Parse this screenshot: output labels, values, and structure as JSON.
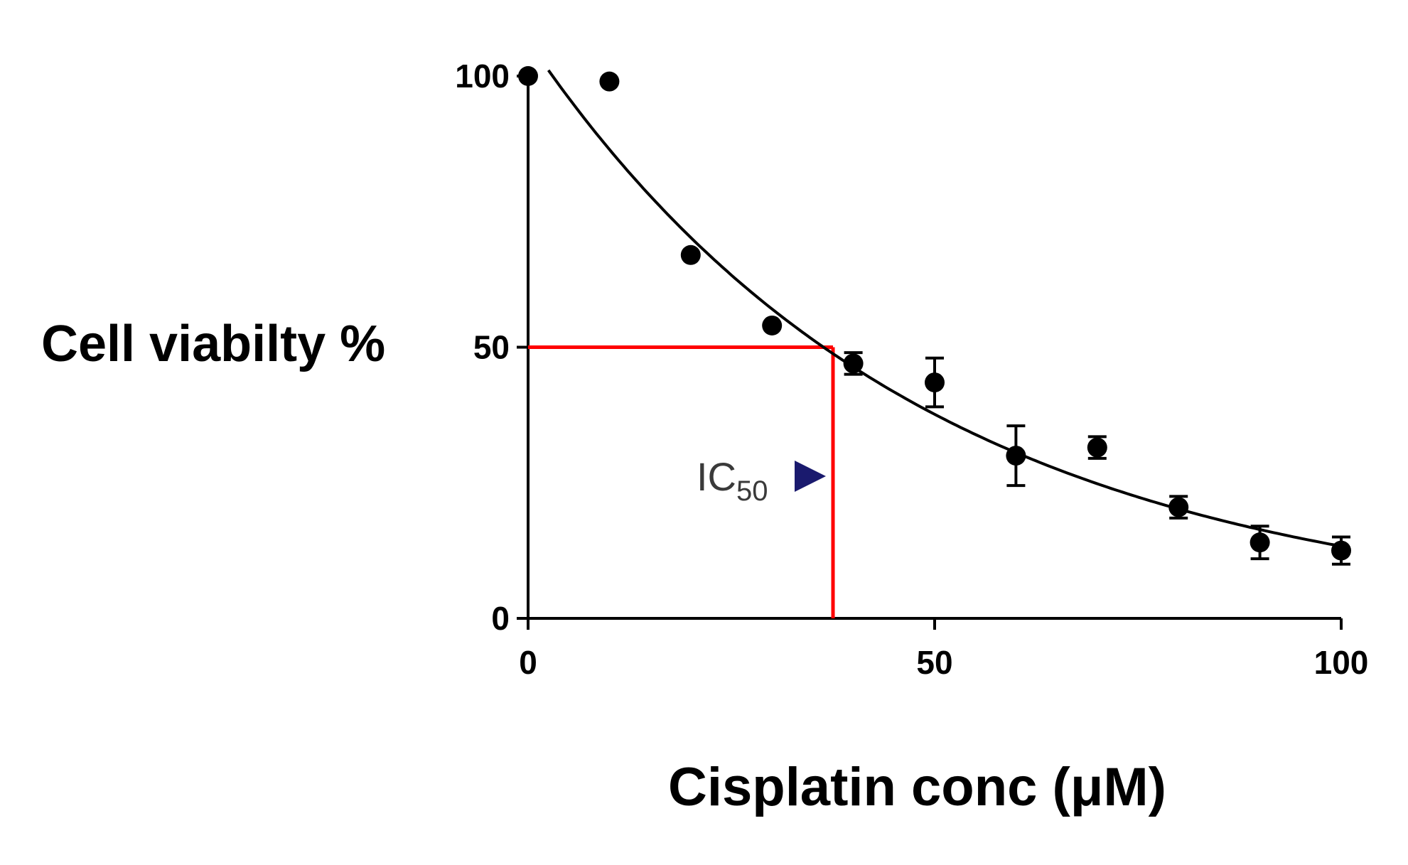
{
  "chart_data": {
    "type": "scatter",
    "xlabel": "Cisplatin conc (μM)",
    "ylabel": "Cell viabilty %",
    "xlim": [
      0,
      100
    ],
    "ylim": [
      0,
      100
    ],
    "xticks": [
      "0",
      "50",
      "100"
    ],
    "yticks": [
      "0",
      "50",
      "100"
    ],
    "grid": false,
    "points": [
      {
        "x": 0,
        "y": 100,
        "err": 0
      },
      {
        "x": 10,
        "y": 99,
        "err": 0
      },
      {
        "x": 20,
        "y": 67,
        "err": 0
      },
      {
        "x": 30,
        "y": 54,
        "err": 0
      },
      {
        "x": 40,
        "y": 47,
        "err": 2
      },
      {
        "x": 50,
        "y": 43.5,
        "err": 4.5
      },
      {
        "x": 60,
        "y": 30,
        "err": 5.5
      },
      {
        "x": 70,
        "y": 31.5,
        "err": 2
      },
      {
        "x": 80,
        "y": 20.5,
        "err": 2
      },
      {
        "x": 90,
        "y": 14,
        "err": 3
      },
      {
        "x": 100,
        "y": 12.5,
        "err": 2.5
      }
    ],
    "fit_curve": {
      "model": "exponential decay",
      "x_start": 2.5,
      "x_end": 100,
      "a": 106.47,
      "k": 0.0208
    },
    "ic50_marker": {
      "x": 37.5,
      "y": 50,
      "color": "#ff0000"
    },
    "annotation": {
      "text": "IC",
      "subscript": "50",
      "arrow_color": "#1a1a6e"
    }
  }
}
